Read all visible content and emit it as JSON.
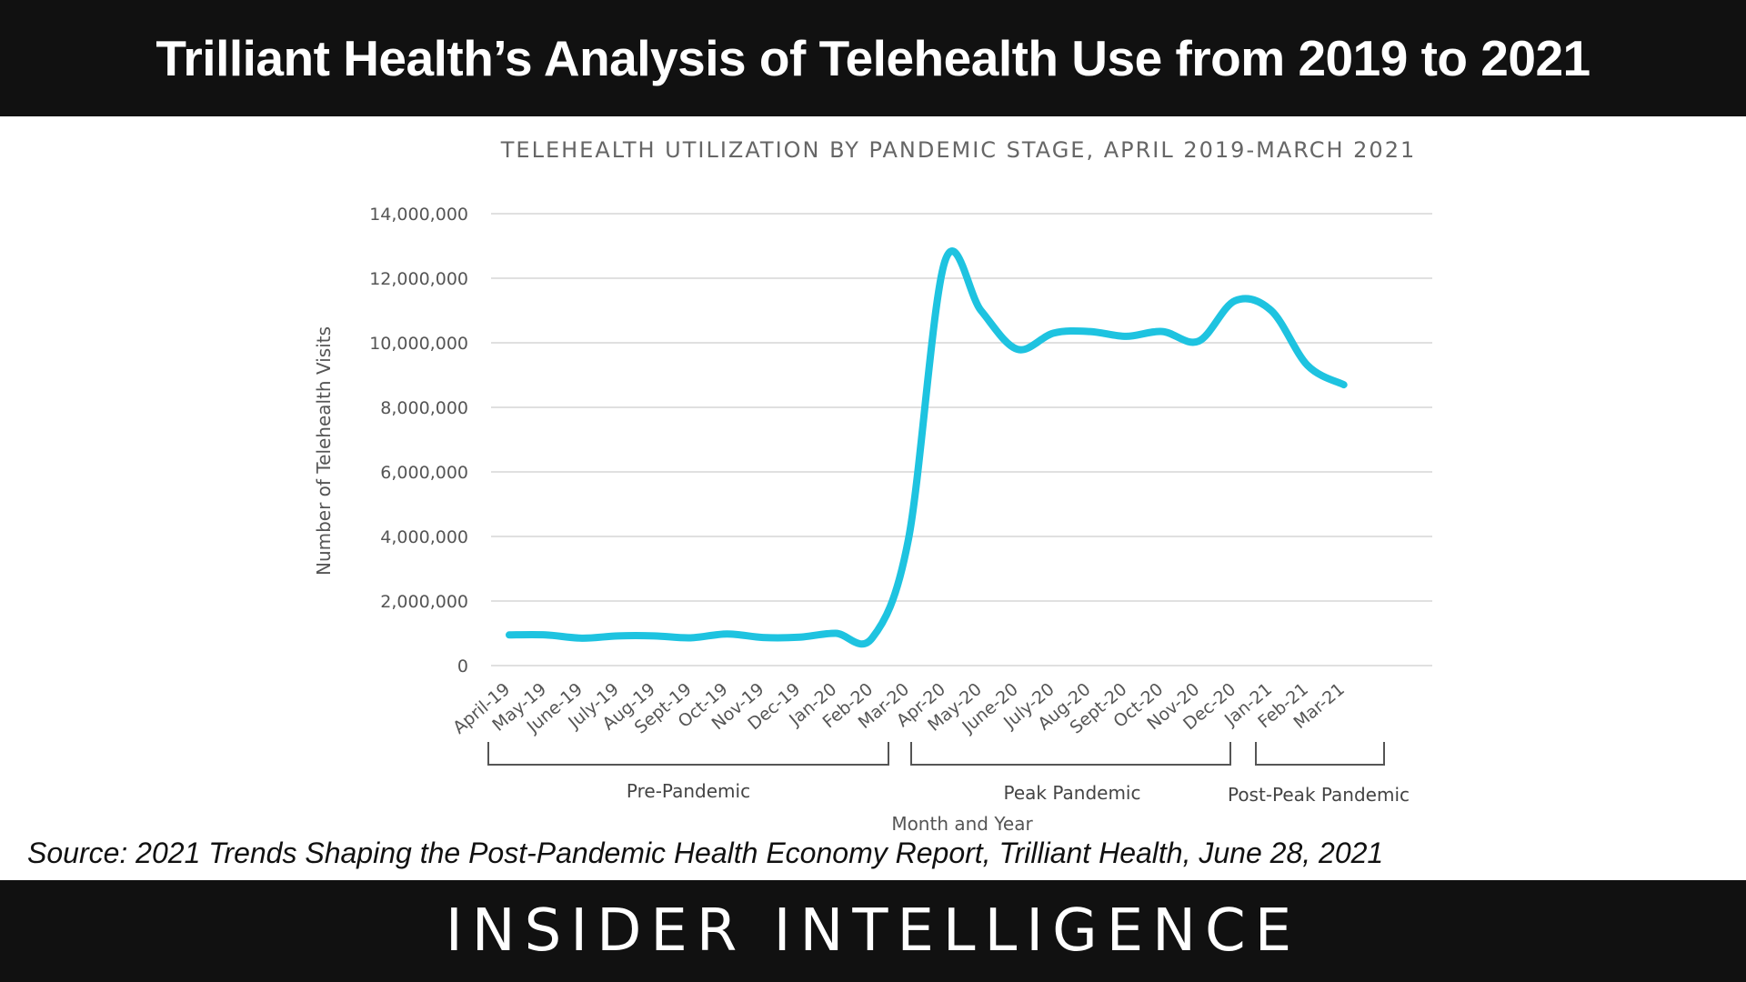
{
  "header": {
    "title": "Trilliant Health’s Analysis of Telehealth Use from 2019 to 2021"
  },
  "source": "Source: 2021 Trends Shaping the Post-Pandemic Health Economy Report, Trilliant Health, June 28, 2021",
  "footer": {
    "brand": "INSIDER INTELLIGENCE"
  },
  "colors": {
    "line": "#1ec3e0",
    "band": "#111111"
  },
  "chart_data": {
    "type": "line",
    "title": "TELEHEALTH UTILIZATION BY PANDEMIC STAGE, APRIL 2019-MARCH 2021",
    "xlabel": "Month and Year",
    "ylabel": "Number of Telehealth Visits",
    "ylim": [
      0,
      14000000
    ],
    "yticks": [
      0,
      2000000,
      4000000,
      6000000,
      8000000,
      10000000,
      12000000,
      14000000
    ],
    "ytick_labels": [
      "0",
      "2,000,000",
      "4,000,000",
      "6,000,000",
      "8,000,000",
      "10,000,000",
      "12,000,000",
      "14,000,000"
    ],
    "categories": [
      "April-19",
      "May-19",
      "June-19",
      "July-19",
      "Aug-19",
      "Sept-19",
      "Oct-19",
      "Nov-19",
      "Dec-19",
      "Jan-20",
      "Feb-20",
      "Mar-20",
      "Apr-20",
      "May-20",
      "June-20",
      "July-20",
      "Aug-20",
      "Sept-20",
      "Oct-20",
      "Nov-20",
      "Dec-20",
      "Jan-21",
      "Feb-21",
      "Mar-21"
    ],
    "series": [
      {
        "values": [
          950000,
          950000,
          850000,
          920000,
          920000,
          860000,
          980000,
          870000,
          880000,
          1000000,
          850000,
          3900000,
          12500000,
          11000000,
          9800000,
          10300000,
          10350000,
          10200000,
          10350000,
          10050000,
          11300000,
          11000000,
          9300000,
          8700000
        ]
      }
    ],
    "stages": [
      {
        "label": "Pre-Pandemic",
        "from": "April-19",
        "to": "Feb-20"
      },
      {
        "label": "Peak Pandemic",
        "from": "Mar-20",
        "to": "Nov-20"
      },
      {
        "label": "Post-Peak Pandemic",
        "from": "Dec-20",
        "to": "Mar-21"
      }
    ],
    "grid": true,
    "legend": "none"
  }
}
